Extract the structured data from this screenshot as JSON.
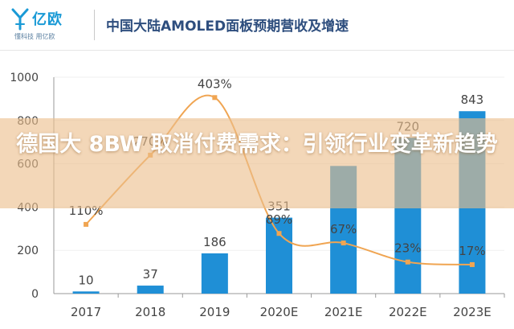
{
  "header": {
    "logo_name": "亿欧",
    "logo_tagline": "懂科技 用亿欧",
    "title": "中国大陆AMOLED面板预期营收及增速"
  },
  "banner": {
    "headline": "德国大 8BW 取消付费需求：引领行业变革新趋势"
  },
  "colors": {
    "bar": "#1f8fd6",
    "line": "#f0a552",
    "axis": "#9a9a9a",
    "grid": "#efefef",
    "label": "#444444"
  },
  "chart_data": {
    "type": "bar",
    "title": "",
    "xlabel": "",
    "ylabel": "",
    "ylim": [
      0,
      1000
    ],
    "yticks": [
      0,
      200,
      400,
      600,
      800,
      1000
    ],
    "categories": [
      "2017",
      "2018",
      "2019",
      "2020E",
      "2021E",
      "2022E",
      "2023E"
    ],
    "series": [
      {
        "type": "bar",
        "values": [
          10,
          37,
          186,
          351,
          590,
          720,
          843
        ],
        "labels": [
          "10",
          "37",
          "186",
          "351",
          "",
          "720",
          "843"
        ]
      },
      {
        "type": "line",
        "values_percent": [
          110,
          270,
          403,
          89,
          67,
          23,
          17
        ],
        "labels": [
          "110%",
          "270%",
          "403%",
          "89%",
          "67%",
          "23%",
          "17%"
        ]
      }
    ],
    "secondary_ylim_percent": [
      -50,
      450
    ],
    "legend": "none"
  }
}
